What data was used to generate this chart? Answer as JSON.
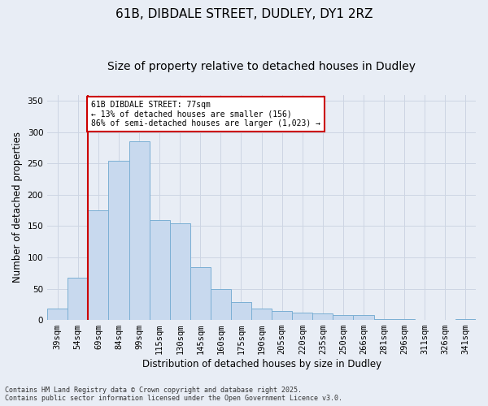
{
  "title1": "61B, DIBDALE STREET, DUDLEY, DY1 2RZ",
  "title2": "Size of property relative to detached houses in Dudley",
  "xlabel": "Distribution of detached houses by size in Dudley",
  "ylabel": "Number of detached properties",
  "categories": [
    "39sqm",
    "54sqm",
    "69sqm",
    "84sqm",
    "99sqm",
    "115sqm",
    "130sqm",
    "145sqm",
    "160sqm",
    "175sqm",
    "190sqm",
    "205sqm",
    "220sqm",
    "235sqm",
    "250sqm",
    "266sqm",
    "281sqm",
    "296sqm",
    "311sqm",
    "326sqm",
    "341sqm"
  ],
  "values": [
    18,
    68,
    175,
    255,
    285,
    160,
    155,
    85,
    50,
    28,
    18,
    15,
    12,
    10,
    8,
    8,
    2,
    2,
    0,
    0,
    2
  ],
  "bar_color": "#c8d9ee",
  "bar_edge_color": "#7bafd4",
  "vline_x_idx": 2,
  "vline_color": "#cc0000",
  "annotation_text": "61B DIBDALE STREET: 77sqm\n← 13% of detached houses are smaller (156)\n86% of semi-detached houses are larger (1,023) →",
  "annotation_box_facecolor": "#ffffff",
  "annotation_box_edgecolor": "#cc0000",
  "ylim": [
    0,
    360
  ],
  "yticks": [
    0,
    50,
    100,
    150,
    200,
    250,
    300,
    350
  ],
  "grid_color": "#cdd5e3",
  "background_color": "#e8edf5",
  "footnote": "Contains HM Land Registry data © Crown copyright and database right 2025.\nContains public sector information licensed under the Open Government Licence v3.0.",
  "title1_fontsize": 11,
  "title2_fontsize": 10,
  "axis_label_fontsize": 8.5,
  "tick_fontsize": 7.5,
  "annot_fontsize": 7,
  "footnote_fontsize": 6
}
